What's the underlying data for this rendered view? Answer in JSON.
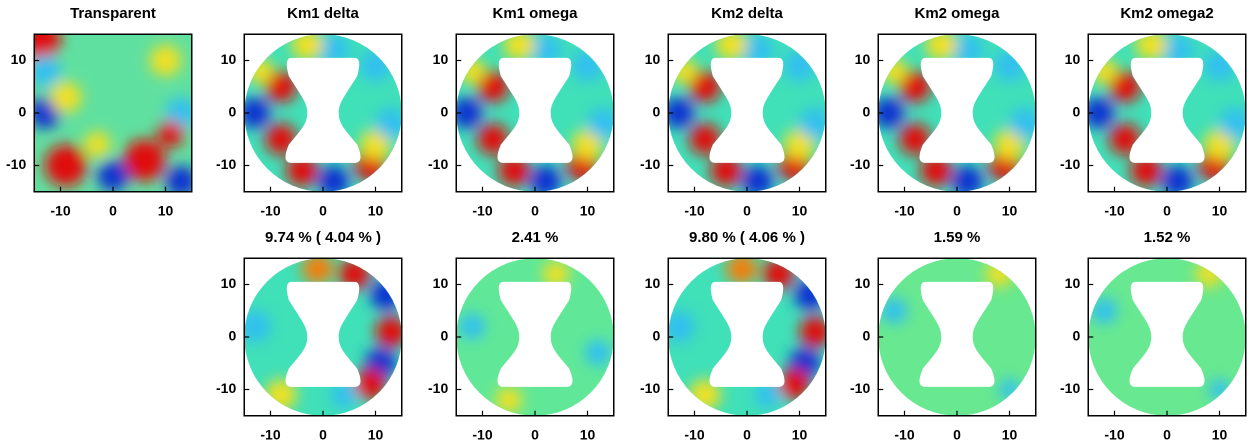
{
  "chart_data": [
    {
      "type": "field",
      "title": "Transparent",
      "xlim": [
        -15,
        15
      ],
      "ylim": [
        -15,
        15
      ],
      "xticks": [
        -10,
        0,
        10
      ],
      "yticks": [
        -10,
        0,
        10
      ]
    },
    {
      "type": "field",
      "title": "Km1 delta",
      "xlim": [
        -15,
        15
      ],
      "ylim": [
        -15,
        15
      ],
      "xticks": [
        -10,
        0,
        10
      ],
      "yticks": [
        -10,
        0,
        10
      ]
    },
    {
      "type": "field",
      "title": "Km1 omega",
      "xlim": [
        -15,
        15
      ],
      "ylim": [
        -15,
        15
      ],
      "xticks": [
        -10,
        0,
        10
      ],
      "yticks": [
        -10,
        0,
        10
      ]
    },
    {
      "type": "field",
      "title": "Km2 delta",
      "xlim": [
        -15,
        15
      ],
      "ylim": [
        -15,
        15
      ],
      "xticks": [
        -10,
        0,
        10
      ],
      "yticks": [
        -10,
        0,
        10
      ]
    },
    {
      "type": "field",
      "title": "Km2 omega",
      "xlim": [
        -15,
        15
      ],
      "ylim": [
        -15,
        15
      ],
      "xticks": [
        -10,
        0,
        10
      ],
      "yticks": [
        -10,
        0,
        10
      ]
    },
    {
      "type": "field",
      "title": "Km2 omega2",
      "xlim": [
        -15,
        15
      ],
      "ylim": [
        -15,
        15
      ],
      "xticks": [
        -10,
        0,
        10
      ],
      "yticks": [
        -10,
        0,
        10
      ]
    },
    {
      "type": "field",
      "title": "9.74 % ( 4.04 % )",
      "xlim": [
        -15,
        15
      ],
      "ylim": [
        -15,
        15
      ],
      "xticks": [
        -10,
        0,
        10
      ],
      "yticks": [
        -10,
        0,
        10
      ]
    },
    {
      "type": "field",
      "title": "2.41 %",
      "xlim": [
        -15,
        15
      ],
      "ylim": [
        -15,
        15
      ],
      "xticks": [
        -10,
        0,
        10
      ],
      "yticks": [
        -10,
        0,
        10
      ]
    },
    {
      "type": "field",
      "title": "9.80 % ( 4.06 % )",
      "xlim": [
        -15,
        15
      ],
      "ylim": [
        -15,
        15
      ],
      "xticks": [
        -10,
        0,
        10
      ],
      "yticks": [
        -10,
        0,
        10
      ]
    },
    {
      "type": "field",
      "title": "1.59 %",
      "xlim": [
        -15,
        15
      ],
      "ylim": [
        -15,
        15
      ],
      "xticks": [
        -10,
        0,
        10
      ],
      "yticks": [
        -10,
        0,
        10
      ]
    },
    {
      "type": "field",
      "title": "1.52 %",
      "xlim": [
        -15,
        15
      ],
      "ylim": [
        -15,
        15
      ],
      "xticks": [
        -10,
        0,
        10
      ],
      "yticks": [
        -10,
        0,
        10
      ]
    }
  ]
}
